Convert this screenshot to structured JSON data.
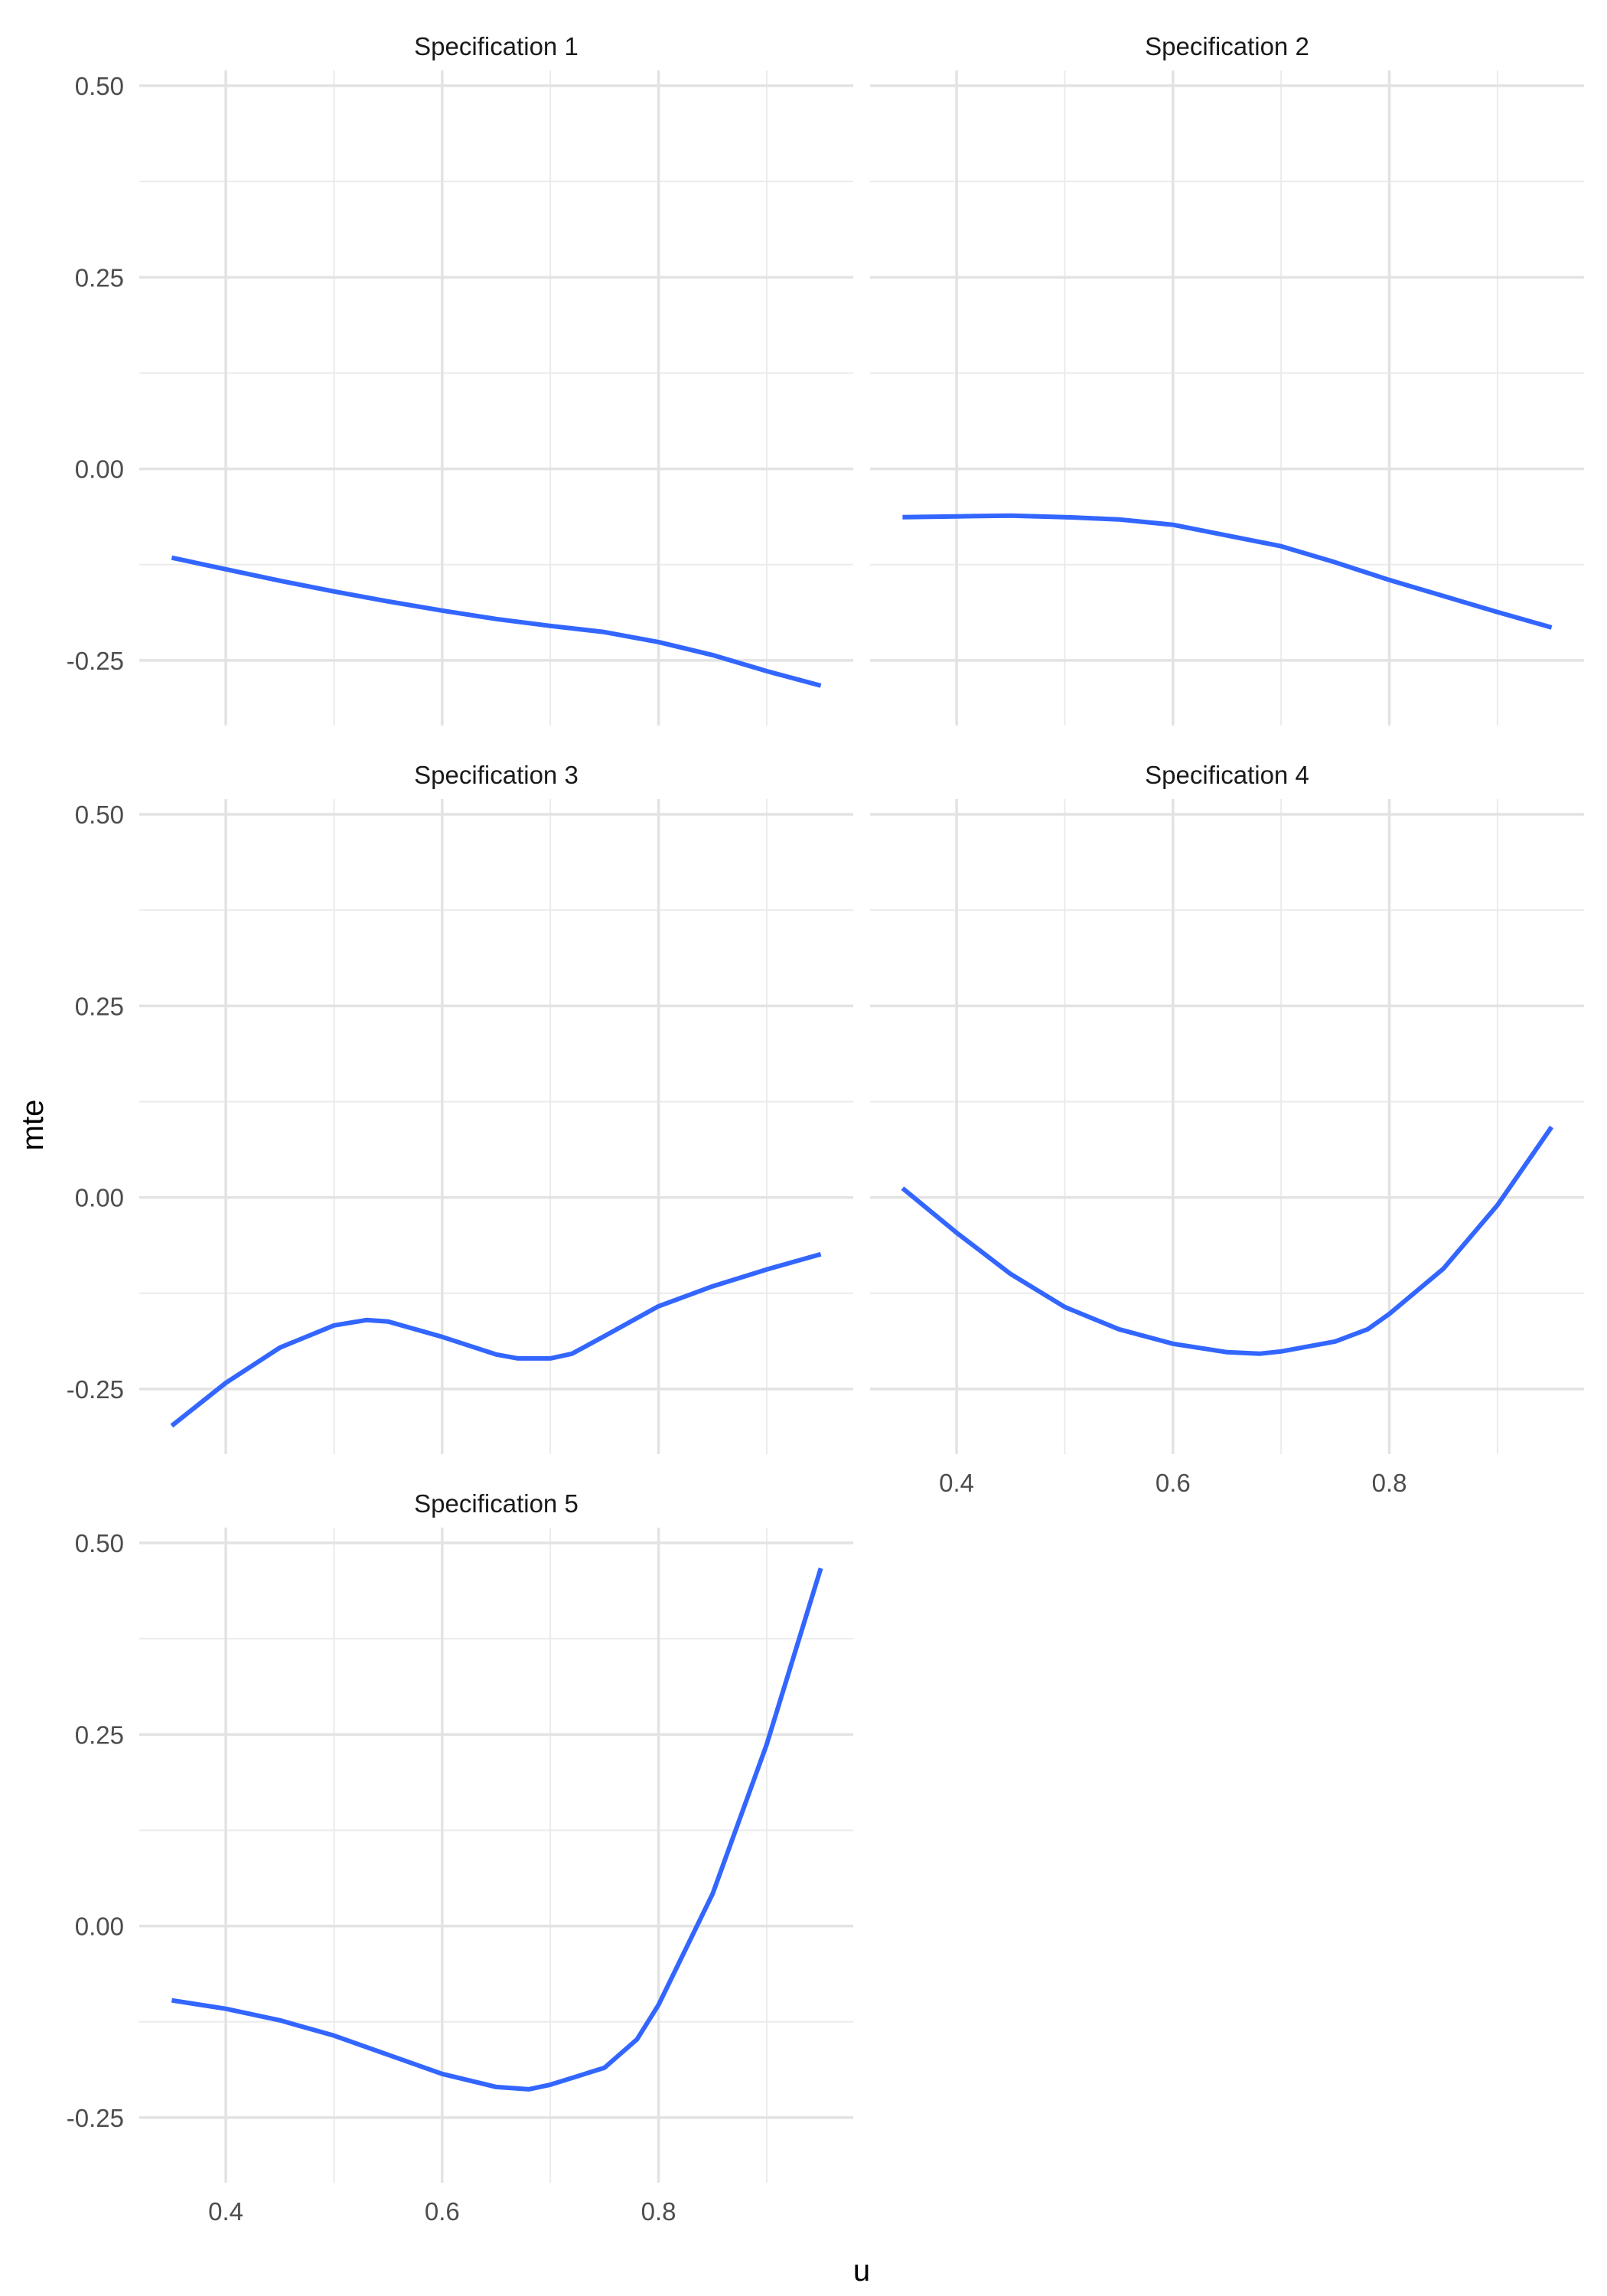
{
  "chart_data": {
    "type": "line",
    "layout": "facet-grid-3x2",
    "xlabel": "u",
    "ylabel": "mte",
    "xlim": [
      0.32,
      0.98
    ],
    "ylim": [
      -0.335,
      0.52
    ],
    "x_ticks": [
      0.4,
      0.6,
      0.8
    ],
    "y_ticks": [
      0.5,
      0.25,
      0.0,
      -0.25
    ],
    "y_tick_labels": [
      "0.50",
      "0.25",
      "0.00",
      "-0.25"
    ],
    "x_tick_labels": [
      "0.4",
      "0.6",
      "0.8"
    ],
    "grid": true,
    "line_color": "#3366ff",
    "panels": [
      {
        "title": "Specification 1",
        "points": [
          [
            0.35,
            -0.116
          ],
          [
            0.4,
            -0.131
          ],
          [
            0.45,
            -0.146
          ],
          [
            0.5,
            -0.16
          ],
          [
            0.55,
            -0.173
          ],
          [
            0.6,
            -0.185
          ],
          [
            0.65,
            -0.196
          ],
          [
            0.7,
            -0.205
          ],
          [
            0.75,
            -0.213
          ],
          [
            0.8,
            -0.226
          ],
          [
            0.85,
            -0.243
          ],
          [
            0.9,
            -0.264
          ],
          [
            0.95,
            -0.283
          ]
        ]
      },
      {
        "title": "Specification 2",
        "points": [
          [
            0.35,
            -0.063
          ],
          [
            0.4,
            -0.062
          ],
          [
            0.45,
            -0.061
          ],
          [
            0.5,
            -0.063
          ],
          [
            0.55,
            -0.066
          ],
          [
            0.6,
            -0.073
          ],
          [
            0.65,
            -0.087
          ],
          [
            0.7,
            -0.101
          ],
          [
            0.75,
            -0.122
          ],
          [
            0.8,
            -0.145
          ],
          [
            0.85,
            -0.166
          ],
          [
            0.9,
            -0.187
          ],
          [
            0.95,
            -0.207
          ]
        ]
      },
      {
        "title": "Specification 3",
        "points": [
          [
            0.35,
            -0.298
          ],
          [
            0.4,
            -0.242
          ],
          [
            0.45,
            -0.196
          ],
          [
            0.5,
            -0.167
          ],
          [
            0.53,
            -0.16
          ],
          [
            0.55,
            -0.162
          ],
          [
            0.6,
            -0.182
          ],
          [
            0.65,
            -0.205
          ],
          [
            0.67,
            -0.21
          ],
          [
            0.7,
            -0.21
          ],
          [
            0.72,
            -0.204
          ],
          [
            0.75,
            -0.181
          ],
          [
            0.8,
            -0.142
          ],
          [
            0.85,
            -0.116
          ],
          [
            0.9,
            -0.094
          ],
          [
            0.95,
            -0.074
          ]
        ]
      },
      {
        "title": "Specification 4",
        "points": [
          [
            0.35,
            0.012
          ],
          [
            0.4,
            -0.046
          ],
          [
            0.45,
            -0.1
          ],
          [
            0.5,
            -0.143
          ],
          [
            0.55,
            -0.172
          ],
          [
            0.6,
            -0.191
          ],
          [
            0.65,
            -0.202
          ],
          [
            0.68,
            -0.204
          ],
          [
            0.7,
            -0.201
          ],
          [
            0.75,
            -0.188
          ],
          [
            0.78,
            -0.172
          ],
          [
            0.8,
            -0.152
          ],
          [
            0.85,
            -0.093
          ],
          [
            0.9,
            -0.01
          ],
          [
            0.95,
            0.092
          ]
        ]
      },
      {
        "title": "Specification 5",
        "points": [
          [
            0.35,
            -0.097
          ],
          [
            0.4,
            -0.108
          ],
          [
            0.45,
            -0.123
          ],
          [
            0.5,
            -0.143
          ],
          [
            0.55,
            -0.168
          ],
          [
            0.6,
            -0.193
          ],
          [
            0.65,
            -0.21
          ],
          [
            0.68,
            -0.213
          ],
          [
            0.7,
            -0.207
          ],
          [
            0.75,
            -0.185
          ],
          [
            0.78,
            -0.148
          ],
          [
            0.8,
            -0.103
          ],
          [
            0.85,
            0.042
          ],
          [
            0.9,
            0.237
          ],
          [
            0.95,
            0.467
          ]
        ]
      }
    ]
  }
}
